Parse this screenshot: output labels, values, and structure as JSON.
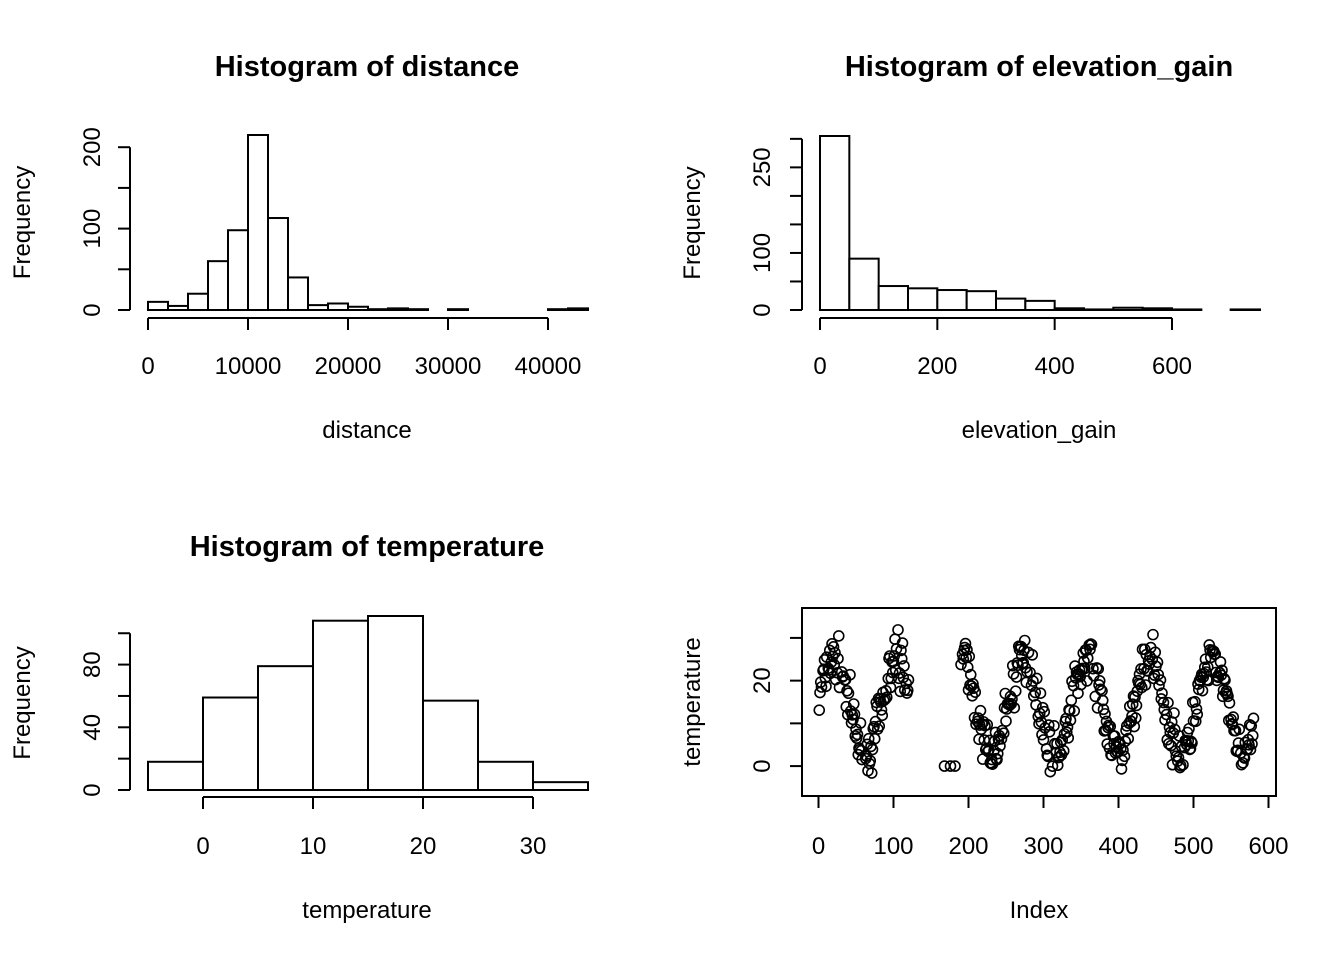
{
  "chart_data": [
    {
      "type": "bar",
      "id": "distance",
      "title": "Histogram of distance",
      "xlabel": "distance",
      "ylabel": "Frequency",
      "bin_start": 0,
      "bin_width": 2000,
      "values": [
        10,
        5,
        20,
        60,
        98,
        215,
        113,
        40,
        6,
        8,
        4,
        1,
        2,
        1,
        0,
        1,
        0,
        0,
        0,
        0,
        1,
        2
      ],
      "xticks": [
        0,
        10000,
        20000,
        30000,
        40000
      ],
      "yticks": [
        0,
        100,
        200
      ],
      "yticks_minor": [
        0,
        50,
        100,
        150,
        200
      ],
      "xlim": [
        0,
        44000
      ],
      "ylim": [
        0,
        215
      ]
    },
    {
      "type": "bar",
      "id": "elevation",
      "title": "Histogram of elevation_gain",
      "xlabel": "elevation_gain",
      "ylabel": "Frequency",
      "bin_start": 0,
      "bin_width": 50,
      "values": [
        305,
        90,
        42,
        38,
        35,
        33,
        20,
        16,
        3,
        1,
        4,
        3,
        1,
        0,
        1
      ],
      "xticks": [
        0,
        200,
        400,
        600
      ],
      "yticks": [
        0,
        100,
        250
      ],
      "yticks_minor": [
        0,
        50,
        100,
        150,
        200,
        250,
        300
      ],
      "xlim": [
        0,
        750
      ],
      "ylim": [
        0,
        305
      ]
    },
    {
      "type": "bar",
      "id": "temperature",
      "title": "Histogram of temperature",
      "xlabel": "temperature",
      "ylabel": "Frequency",
      "bin_start": -5,
      "bin_width": 5,
      "values": [
        18,
        59,
        79,
        108,
        111,
        57,
        18,
        5
      ],
      "xticks": [
        0,
        10,
        20,
        30
      ],
      "yticks": [
        0,
        40,
        80
      ],
      "yticks_minor": [
        0,
        20,
        40,
        60,
        80,
        100
      ],
      "xlim": [
        -5,
        35
      ],
      "ylim": [
        0,
        111
      ]
    },
    {
      "type": "scatter",
      "id": "scatter",
      "title": "",
      "xlabel": "Index",
      "ylabel": "temperature",
      "xticks": [
        0,
        100,
        200,
        300,
        400,
        500,
        600
      ],
      "yticks": [
        0,
        20
      ],
      "xlim": [
        -22,
        610
      ],
      "ylim": [
        -7,
        37
      ]
    }
  ]
}
